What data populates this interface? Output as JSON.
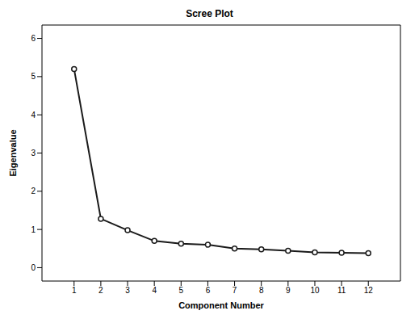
{
  "chart_data": {
    "type": "line",
    "title": "Scree Plot",
    "x_label": "Component Number",
    "y_label": "Eigenvalue",
    "x": [
      1,
      2,
      3,
      4,
      5,
      6,
      7,
      8,
      9,
      10,
      11,
      12
    ],
    "values": [
      5.2,
      1.28,
      0.98,
      0.7,
      0.63,
      0.6,
      0.5,
      0.48,
      0.44,
      0.4,
      0.39,
      0.38
    ],
    "xlim": [
      -0.2,
      13.2
    ],
    "xticks": [
      1,
      2,
      3,
      4,
      5,
      6,
      7,
      8,
      9,
      10,
      11,
      12
    ],
    "ylim": [
      -0.35,
      6.35
    ],
    "yticks": [
      0,
      1,
      2,
      3,
      4,
      5,
      6
    ],
    "color": "#1a1a1a",
    "marker": "circle",
    "grid": false
  }
}
